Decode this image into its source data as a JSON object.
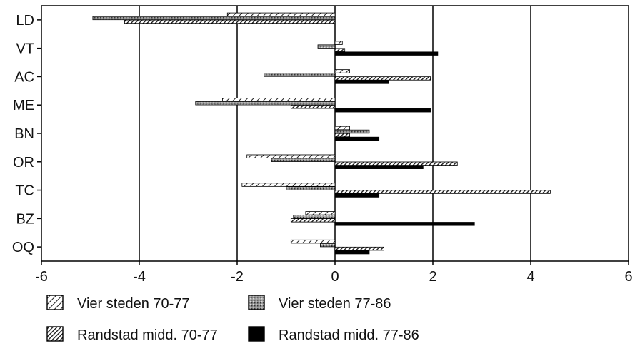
{
  "chart_data": {
    "type": "bar",
    "orientation": "horizontal",
    "title": "",
    "xlabel": "",
    "ylabel": "",
    "xlim": [
      -6,
      6
    ],
    "xticks": [
      "-6",
      "-4",
      "-2",
      "0",
      "2",
      "4",
      "6"
    ],
    "grid": "vertical lines at major ticks",
    "legend_position": "bottom",
    "categories": [
      "LD",
      "VT",
      "AC",
      "ME",
      "BN",
      "OR",
      "TC",
      "BZ",
      "OQ"
    ],
    "series": [
      {
        "name": "Vier steden 70-77",
        "pattern": "diagonal-light",
        "values": [
          -2.2,
          0.15,
          0.3,
          -2.3,
          0.3,
          -1.8,
          -1.9,
          -0.6,
          -0.9
        ]
      },
      {
        "name": "Vier steden 77-86",
        "pattern": "gray-stipple",
        "values": [
          -4.95,
          -0.35,
          -1.45,
          -2.85,
          0.7,
          -1.3,
          -1.0,
          -0.85,
          -0.3
        ]
      },
      {
        "name": "Randstad midd. 70-77",
        "pattern": "diagonal-dense",
        "values": [
          -4.3,
          0.2,
          1.95,
          -0.9,
          0.3,
          2.5,
          4.4,
          -0.9,
          1.0
        ]
      },
      {
        "name": "Randstad midd. 77-86",
        "pattern": "solid-black",
        "values": [
          0.0,
          2.1,
          1.1,
          1.95,
          0.9,
          1.8,
          0.9,
          2.85,
          0.7
        ]
      }
    ]
  }
}
